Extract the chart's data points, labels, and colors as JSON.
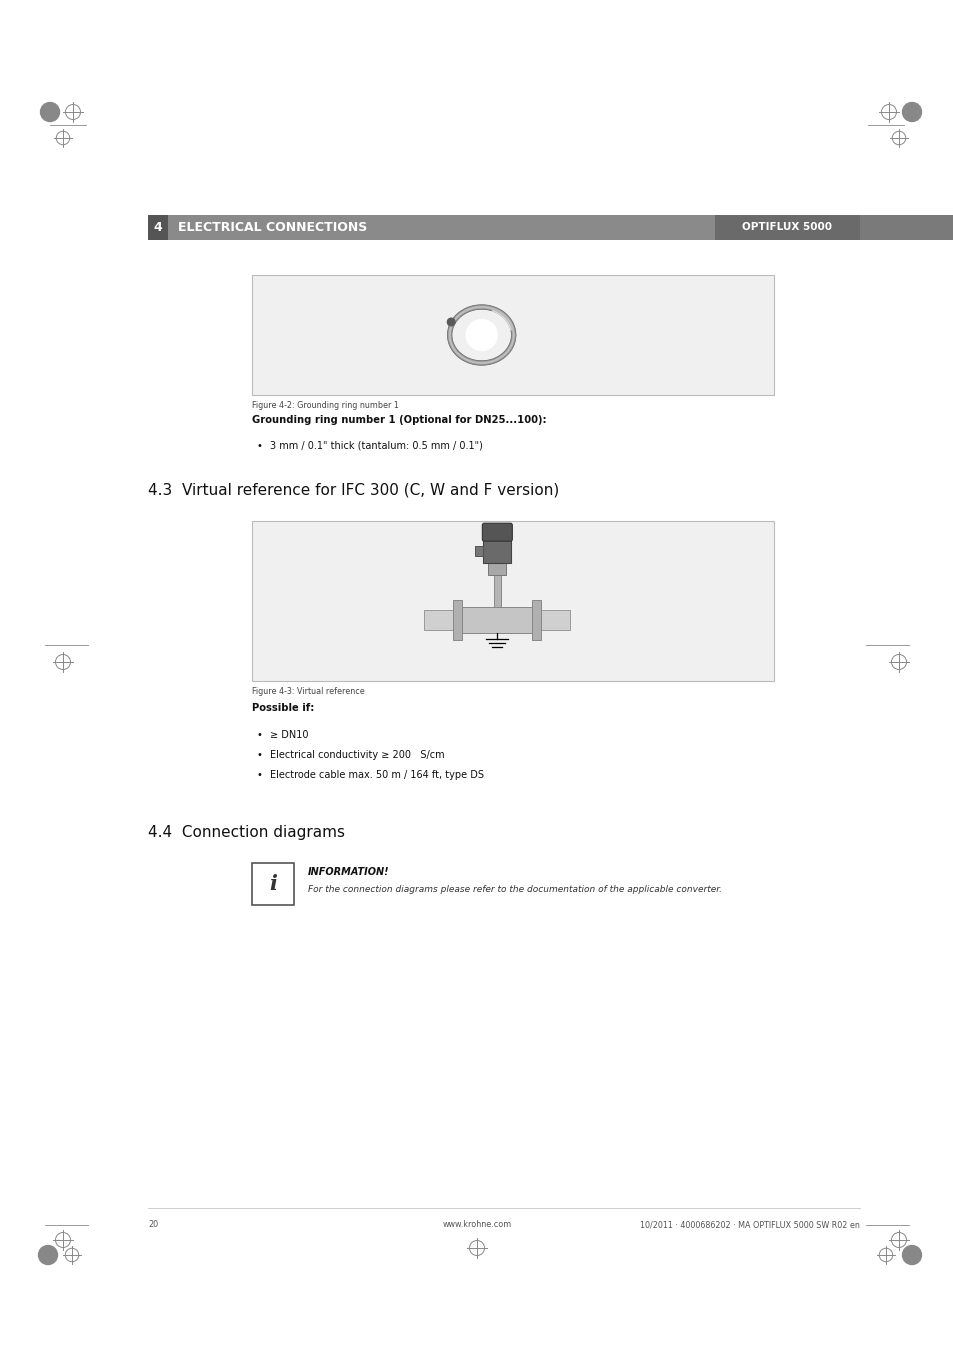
{
  "bg_color": "#ffffff",
  "page_width": 9.54,
  "page_height": 13.5,
  "header_section_number": "4",
  "header_title": "ELECTRICAL CONNECTIONS",
  "header_right": "OPTIFLUX 5000",
  "section_43_title": "4.3  Virtual reference for IFC 300 (C, W and F version)",
  "section_44_title": "4.4  Connection diagrams",
  "fig42_caption": "Figure 4-2: Grounding ring number 1",
  "fig43_caption": "Figure 4-3: Virtual reference",
  "grounding_heading": "Grounding ring number 1 (Optional for DN25...100):",
  "grounding_bullet": "3 mm / 0.1\" thick (tantalum: 0.5 mm / 0.1\")",
  "possible_if_heading": "Possible if:",
  "possible_if_bullets": [
    "≥ DN10",
    "Electrical conductivity ≥ 200   S/cm",
    "Electrode cable max. 50 m / 164 ft, type DS"
  ],
  "info_label": "INFORMATION!",
  "info_text": "For the connection diagrams please refer to the documentation of the applicable converter.",
  "footer_page": "20",
  "footer_center": "www.krohne.com",
  "footer_right": "10/2011 · 4000686202 · MA OPTIFLUX 5000 SW R02 en"
}
